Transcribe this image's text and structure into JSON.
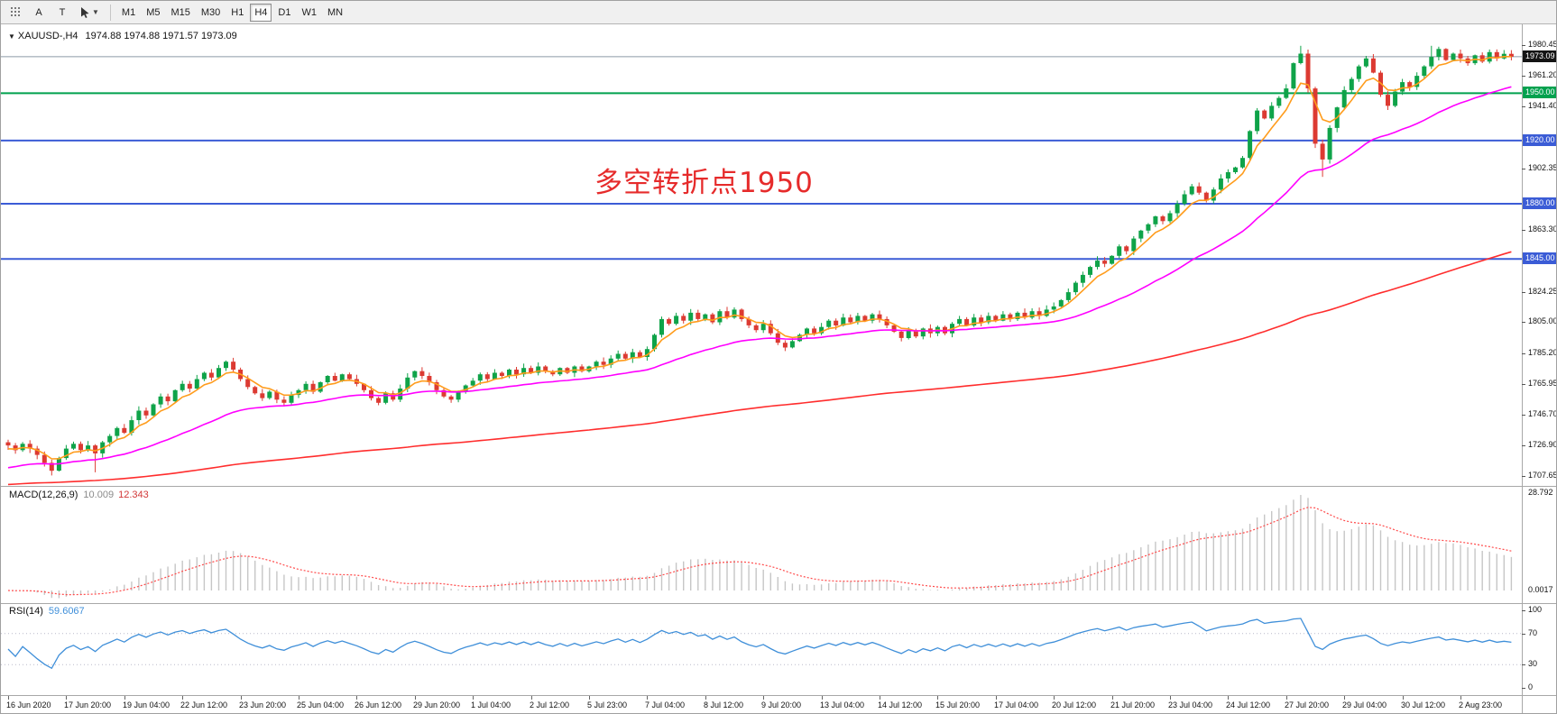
{
  "toolbar": {
    "text_tool_label": "A",
    "label_tool_label": "T",
    "timeframes": [
      "M1",
      "M5",
      "M15",
      "M30",
      "H1",
      "H4",
      "D1",
      "W1",
      "MN"
    ],
    "active_timeframe": "H4"
  },
  "chart": {
    "symbol_label": "XAUUSD-,H4",
    "ohlc_label": "1974.88 1974.88 1971.57 1973.09",
    "annotation": {
      "text": "多空转折点1950",
      "color": "#e62b2b"
    }
  },
  "chart_data": {
    "type": "candlestick",
    "symbol": "XAUUSD",
    "timeframe": "H4",
    "last_values": {
      "open": 1974.88,
      "high": 1974.88,
      "low": 1971.57,
      "close": 1973.09
    },
    "price_axis": {
      "max": 1980.45,
      "min": 1707.65,
      "ticks": [
        "1980.45",
        "1961.20",
        "1941.40",
        "1902.35",
        "1863.30",
        "1824.25",
        "1805.00",
        "1785.20",
        "1765.95",
        "1746.70",
        "1726.90",
        "1707.65"
      ]
    },
    "up_color": "#0fa349",
    "down_color": "#dc3a32",
    "closes": [
      1727,
      1724,
      1728,
      1725,
      1721,
      1716,
      1711,
      1719,
      1725,
      1728,
      1724,
      1727,
      1722,
      1729,
      1733,
      1738,
      1735,
      1743,
      1749,
      1746,
      1753,
      1758,
      1755,
      1762,
      1766,
      1763,
      1769,
      1773,
      1770,
      1776,
      1780,
      1775,
      1769,
      1764,
      1760,
      1757,
      1761,
      1756,
      1754,
      1759,
      1762,
      1766,
      1761,
      1767,
      1771,
      1768,
      1772,
      1769,
      1766,
      1762,
      1757,
      1754,
      1760,
      1756,
      1763,
      1770,
      1774,
      1771,
      1767,
      1762,
      1758,
      1756,
      1761,
      1765,
      1768,
      1772,
      1769,
      1773,
      1771,
      1775,
      1772,
      1776,
      1773,
      1777,
      1774,
      1772,
      1776,
      1773,
      1777,
      1774,
      1777,
      1780,
      1778,
      1782,
      1785,
      1782,
      1786,
      1783,
      1788,
      1797,
      1807,
      1804,
      1809,
      1806,
      1811,
      1807,
      1810,
      1805,
      1812,
      1808,
      1813,
      1807,
      1803,
      1800,
      1804,
      1798,
      1792,
      1789,
      1793,
      1797,
      1801,
      1798,
      1802,
      1806,
      1803,
      1808,
      1805,
      1809,
      1806,
      1810,
      1807,
      1803,
      1799,
      1795,
      1800,
      1796,
      1801,
      1798,
      1802,
      1798,
      1804,
      1807,
      1803,
      1808,
      1805,
      1809,
      1806,
      1810,
      1807,
      1811,
      1808,
      1812,
      1809,
      1813,
      1815,
      1819,
      1824,
      1830,
      1835,
      1840,
      1844,
      1842,
      1847,
      1853,
      1850,
      1858,
      1863,
      1867,
      1872,
      1869,
      1874,
      1880,
      1886,
      1891,
      1887,
      1882,
      1889,
      1896,
      1900,
      1903,
      1909,
      1926,
      1939,
      1934,
      1942,
      1947,
      1953,
      1969,
      1975,
      1953,
      1918,
      1908,
      1928,
      1941,
      1952,
      1959,
      1967,
      1972,
      1963,
      1949,
      1942,
      1951,
      1957,
      1954,
      1961,
      1967,
      1973,
      1978,
      1971,
      1975,
      1972,
      1969,
      1974,
      1970,
      1976,
      1972,
      1974.9,
      1973.1
    ],
    "wick_overrides": {
      "6": [
        null,
        1708
      ],
      "12": [
        null,
        1710
      ],
      "178": [
        1980,
        null
      ],
      "181": [
        null,
        1897
      ],
      "196": [
        1980,
        null
      ]
    },
    "hlines": [
      {
        "price": 1973.09,
        "label": "1973.09",
        "color": "#8c9aa6",
        "label_bg": "#141414",
        "width": 1,
        "kind": "current-price"
      },
      {
        "price": 1950.0,
        "label": "1950.00",
        "color": "#00a14e",
        "label_bg": "#00a14e",
        "width": 2,
        "kind": "horizontal-line"
      },
      {
        "price": 1920.0,
        "label": "1920.00",
        "color": "#3b5cd6",
        "label_bg": "#3b5cd6",
        "width": 2,
        "kind": "horizontal-line"
      },
      {
        "price": 1880.0,
        "label": "1880.00",
        "color": "#3b5cd6",
        "label_bg": "#3b5cd6",
        "width": 2,
        "kind": "horizontal-line"
      },
      {
        "price": 1845.0,
        "label": "1845.00",
        "color": "#3b5cd6",
        "label_bg": "#3b5cd6",
        "width": 2,
        "kind": "horizontal-line"
      }
    ],
    "moving_averages": [
      {
        "name": "ma-fast",
        "color": "#ff9c1c",
        "alpha": 0.3,
        "start": 1724
      },
      {
        "name": "ma-mid",
        "color": "#ff00ff",
        "alpha": 0.06,
        "start": 1712
      },
      {
        "name": "ma-slow",
        "color": "#ff2d2d",
        "alpha": 0.011,
        "start": 1702
      }
    ],
    "macd": {
      "label": "MACD(12,26,9)",
      "value_main": "10.009",
      "value_signal": "12.343",
      "fast": 12,
      "slow": 26,
      "signal": 9,
      "hist_color": "#c6c6c6",
      "signal_color": "#ff4b4b",
      "axis_max": "28.792",
      "axis_min": "0.0017"
    },
    "rsi": {
      "label": "RSI(14)",
      "value": "59.6067",
      "period": 14,
      "color": "#3f8fd9",
      "levels": [
        70,
        30
      ],
      "axis_labels": [
        "100",
        "70",
        "30",
        "0"
      ]
    },
    "time_labels": [
      "16 Jun 2020",
      "17 Jun 20:00",
      "19 Jun 04:00",
      "22 Jun 12:00",
      "23 Jun 20:00",
      "25 Jun 04:00",
      "26 Jun 12:00",
      "29 Jun 20:00",
      "1 Jul 04:00",
      "2 Jul 12:00",
      "5 Jul 23:00",
      "7 Jul 04:00",
      "8 Jul 12:00",
      "9 Jul 20:00",
      "13 Jul 04:00",
      "14 Jul 12:00",
      "15 Jul 20:00",
      "17 Jul 04:00",
      "20 Jul 12:00",
      "21 Jul 20:00",
      "23 Jul 04:00",
      "24 Jul 12:00",
      "27 Jul 20:00",
      "29 Jul 04:00",
      "30 Jul 12:00",
      "2 Aug 23:00"
    ]
  }
}
